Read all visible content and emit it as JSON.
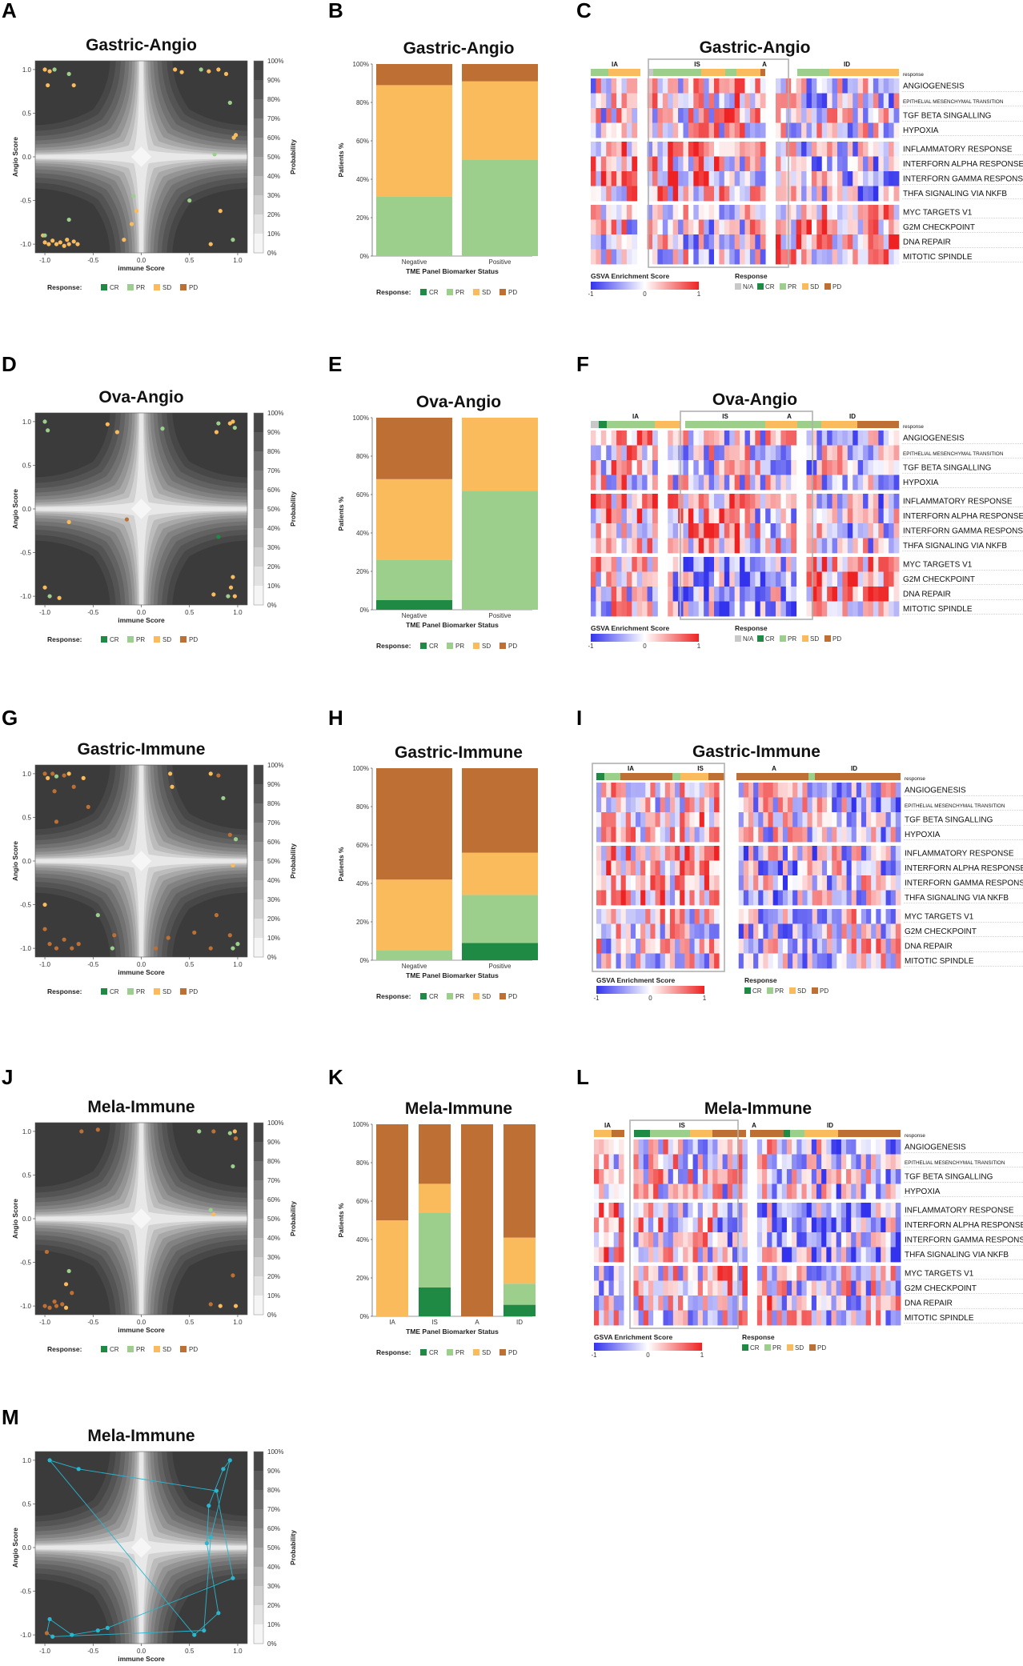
{
  "figure": {
    "panels": [
      {
        "id": "A",
        "kind": "contour",
        "title": "Gastric-Angio"
      },
      {
        "id": "B",
        "kind": "bar",
        "title": "Gastric-Angio"
      },
      {
        "id": "C",
        "kind": "heatmap",
        "title": "Gastric-Angio"
      },
      {
        "id": "D",
        "kind": "contour",
        "title": "Ova-Angio"
      },
      {
        "id": "E",
        "kind": "bar",
        "title": "Ova-Angio"
      },
      {
        "id": "F",
        "kind": "heatmap",
        "title": "Ova-Angio"
      },
      {
        "id": "G",
        "kind": "contour",
        "title": "Gastric-Immune"
      },
      {
        "id": "H",
        "kind": "bar",
        "title": "Gastric-Immune"
      },
      {
        "id": "I",
        "kind": "heatmap",
        "title": "Gastric-Immune"
      },
      {
        "id": "J",
        "kind": "contour",
        "title": "Mela-Immune"
      },
      {
        "id": "K",
        "kind": "bar",
        "title": "Mela-Immune"
      },
      {
        "id": "L",
        "kind": "heatmap",
        "title": "Mela-Immune"
      },
      {
        "id": "M",
        "kind": "contour",
        "title": "Mela-Immune"
      }
    ]
  },
  "contour_common": {
    "x_label": "immune Score",
    "y_label": "Angio Score",
    "x_ticks": [
      "-1.0",
      "-0.5",
      "0.0",
      "0.5",
      "1.0"
    ],
    "y_ticks": [
      "1.0",
      "0.5",
      "0.0",
      "-0.5",
      "-1.0"
    ],
    "colorbar_label": "Probability",
    "colorbar_ticks": [
      "100%",
      "90%",
      "80%",
      "70%",
      "60%",
      "50%",
      "40%",
      "30%",
      "20%",
      "10%",
      "0%"
    ],
    "response_label": "Response:",
    "responses": [
      "CR",
      "PR",
      "SD",
      "PD"
    ]
  },
  "bar_common": {
    "y_label": "Patients %",
    "x_label": "TME Panel Biomarker Status",
    "y_ticks": [
      "100%",
      "80%",
      "60%",
      "40%",
      "20%",
      "0%"
    ]
  },
  "heatmap_common": {
    "legend_title": "GSVA Enrichment Score",
    "scale_ticks": [
      "-1",
      "0",
      "1"
    ],
    "response_title": "Response",
    "response_keys_full": [
      "N/A",
      "CR",
      "PR",
      "SD",
      "PD"
    ],
    "response_keys_short": [
      "CR",
      "PR",
      "SD",
      "PD"
    ],
    "row_header": "response",
    "pathways": [
      "ANGIOGENESIS",
      "EPITHELIAL MESENCHYMAL TRANSITION",
      "TGF BETA SINGALLING",
      "HYPOXIA",
      "INFLAMMATORY RESPONSE",
      "INTERFORN ALPHA RESPONSE",
      "INTERFORN GAMMA RESPONSE",
      "THFA SIGNALING VIA NKFB",
      "MYC TARGETS V1",
      "G2M CHECKPOINT",
      "DNA REPAIR",
      "MITOTIC SPINDLE"
    ],
    "groups_C": [
      "IA",
      "IS",
      "A",
      "ID"
    ],
    "groups_F": [
      "IA",
      "IS",
      "A",
      "ID"
    ],
    "groups_I": [
      "IA",
      "IS",
      "A",
      "ID"
    ],
    "groups_L": [
      "IA",
      "IS",
      "A",
      "ID"
    ]
  },
  "colors": {
    "CR": "#1e8a44",
    "PR": "#9ccf8c",
    "SD": "#f9bb5c",
    "PD": "#be7034",
    "NA": "#c8c8c8",
    "low": "#3333ee",
    "mid": "#ffffff",
    "high": "#ee2222",
    "traj": "#29b6cf"
  },
  "chart_data": [
    {
      "panel": "B",
      "type": "bar",
      "title": "Gastric-Angio",
      "xlabel": "TME Panel Biomarker Status",
      "ylabel": "Patients %",
      "ylim": [
        0,
        100
      ],
      "categories": [
        "Negative",
        "Positive"
      ],
      "series": [
        {
          "name": "CR",
          "values": [
            0,
            0
          ]
        },
        {
          "name": "PR",
          "values": [
            31,
            50
          ]
        },
        {
          "name": "SD",
          "values": [
            58,
            41
          ]
        },
        {
          "name": "PD",
          "values": [
            11,
            9
          ]
        }
      ]
    },
    {
      "panel": "E",
      "type": "bar",
      "title": "Ova-Angio",
      "xlabel": "TME Panel Biomarker Status",
      "ylabel": "Patients %",
      "ylim": [
        0,
        100
      ],
      "categories": [
        "Negative",
        "Positive"
      ],
      "series": [
        {
          "name": "CR",
          "values": [
            5,
            0
          ]
        },
        {
          "name": "PR",
          "values": [
            21,
            62
          ]
        },
        {
          "name": "SD",
          "values": [
            42,
            38
          ]
        },
        {
          "name": "PD",
          "values": [
            32,
            0
          ]
        }
      ]
    },
    {
      "panel": "H",
      "type": "bar",
      "title": "Gastric-Immune",
      "xlabel": "TME Panel Biomarker Status",
      "ylabel": "Patients %",
      "ylim": [
        0,
        100
      ],
      "categories": [
        "Negative",
        "Positive"
      ],
      "series": [
        {
          "name": "CR",
          "values": [
            0,
            9
          ]
        },
        {
          "name": "PR",
          "values": [
            5,
            25
          ]
        },
        {
          "name": "SD",
          "values": [
            37,
            22
          ]
        },
        {
          "name": "PD",
          "values": [
            58,
            44
          ]
        }
      ]
    },
    {
      "panel": "K",
      "type": "bar",
      "title": "Mela-Immune",
      "xlabel": "TME Panel Biomarker Status",
      "ylabel": "Patients %",
      "ylim": [
        0,
        100
      ],
      "categories": [
        "IA",
        "IS",
        "A",
        "ID"
      ],
      "series": [
        {
          "name": "CR",
          "values": [
            0,
            15,
            0,
            6
          ]
        },
        {
          "name": "PR",
          "values": [
            0,
            39,
            0,
            11
          ]
        },
        {
          "name": "SD",
          "values": [
            50,
            15,
            0,
            24
          ]
        },
        {
          "name": "PD",
          "values": [
            50,
            31,
            100,
            59
          ]
        }
      ]
    },
    {
      "panel": "A",
      "type": "scatter",
      "title": "Gastric-Angio",
      "xlabel": "immune Score",
      "ylabel": "Angio Score",
      "xlim": [
        -1.1,
        1.1
      ],
      "ylim": [
        -1.1,
        1.1
      ],
      "points": [
        [
          -1.0,
          1.0,
          "SD"
        ],
        [
          -0.95,
          0.98,
          "SD"
        ],
        [
          -0.9,
          1.0,
          "PR"
        ],
        [
          -0.75,
          0.95,
          "PR"
        ],
        [
          -0.7,
          0.82,
          "SD"
        ],
        [
          -0.97,
          0.82,
          "SD"
        ],
        [
          0.35,
          1.0,
          "SD"
        ],
        [
          0.42,
          0.97,
          "SD"
        ],
        [
          0.62,
          1.0,
          "PR"
        ],
        [
          0.7,
          0.98,
          "SD"
        ],
        [
          0.8,
          1.0,
          "SD"
        ],
        [
          0.88,
          0.95,
          "SD"
        ],
        [
          0.92,
          0.62,
          "PR"
        ],
        [
          0.98,
          0.25,
          "SD"
        ],
        [
          0.96,
          0.22,
          "SD"
        ],
        [
          0.76,
          0.03,
          "PR"
        ],
        [
          0.5,
          -0.5,
          "PR"
        ],
        [
          0.82,
          -0.62,
          "SD"
        ],
        [
          0.95,
          -0.95,
          "PR"
        ],
        [
          0.72,
          -1.0,
          "SD"
        ],
        [
          -0.08,
          -0.45,
          "PR"
        ],
        [
          -0.05,
          -0.62,
          "SD"
        ],
        [
          -0.1,
          -0.77,
          "SD"
        ],
        [
          -0.18,
          -0.95,
          "SD"
        ],
        [
          -1.02,
          -0.9,
          "SD"
        ],
        [
          -1.0,
          -0.98,
          "SD"
        ],
        [
          -0.96,
          -1.0,
          "SD"
        ],
        [
          -0.92,
          -0.96,
          "SD"
        ],
        [
          -0.88,
          -1.0,
          "SD"
        ],
        [
          -0.84,
          -0.98,
          "SD"
        ],
        [
          -0.8,
          -1.02,
          "SD"
        ],
        [
          -0.75,
          -1.0,
          "SD"
        ],
        [
          -0.7,
          -0.97,
          "SD"
        ],
        [
          -0.66,
          -1.0,
          "SD"
        ],
        [
          -1.0,
          -0.9,
          "PR"
        ],
        [
          -0.77,
          -0.95,
          "SD"
        ],
        [
          -0.75,
          -0.72,
          "PR"
        ]
      ]
    },
    {
      "panel": "D",
      "type": "scatter",
      "title": "Ova-Angio",
      "xlabel": "immune Score",
      "ylabel": "Angio Score",
      "xlim": [
        -1.1,
        1.1
      ],
      "ylim": [
        -1.1,
        1.1
      ],
      "points": [
        [
          -1.0,
          1.0,
          "PR"
        ],
        [
          -0.97,
          0.9,
          "PR"
        ],
        [
          -0.35,
          0.97,
          "SD"
        ],
        [
          -0.25,
          0.88,
          "SD"
        ],
        [
          0.22,
          0.92,
          "PR"
        ],
        [
          0.8,
          0.98,
          "PR"
        ],
        [
          0.95,
          1.0,
          "SD"
        ],
        [
          0.97,
          0.93,
          "PR"
        ],
        [
          0.92,
          0.98,
          "SD"
        ],
        [
          0.78,
          0.88,
          "SD"
        ],
        [
          -0.75,
          -0.15,
          "SD"
        ],
        [
          -0.15,
          -0.12,
          "PD"
        ],
        [
          0.8,
          -0.32,
          "CR"
        ],
        [
          0.95,
          -0.78,
          "SD"
        ],
        [
          0.93,
          -0.9,
          "SD"
        ],
        [
          0.9,
          -1.0,
          "PR"
        ],
        [
          0.97,
          -1.0,
          "SD"
        ],
        [
          0.75,
          -0.98,
          "SD"
        ],
        [
          -1.0,
          -0.9,
          "SD"
        ],
        [
          -0.95,
          -1.0,
          "PR"
        ],
        [
          -0.85,
          -1.02,
          "SD"
        ]
      ]
    },
    {
      "panel": "G",
      "type": "scatter",
      "title": "Gastric-Immune",
      "xlabel": "immune Score",
      "ylabel": "Angio Score",
      "xlim": [
        -1.1,
        1.1
      ],
      "ylim": [
        -1.1,
        1.1
      ],
      "points": [
        [
          -1.0,
          1.0,
          "PD"
        ],
        [
          -0.97,
          0.95,
          "SD"
        ],
        [
          -0.92,
          1.0,
          "PD"
        ],
        [
          -0.88,
          0.97,
          "PR"
        ],
        [
          -0.8,
          0.98,
          "PD"
        ],
        [
          -0.75,
          1.0,
          "SD"
        ],
        [
          -0.7,
          0.85,
          "PD"
        ],
        [
          -0.6,
          0.95,
          "SD"
        ],
        [
          -0.9,
          0.8,
          "PD"
        ],
        [
          -0.55,
          0.62,
          "PD"
        ],
        [
          -0.88,
          0.45,
          "PD"
        ],
        [
          0.3,
          1.0,
          "SD"
        ],
        [
          0.32,
          0.85,
          "SD"
        ],
        [
          0.72,
          1.0,
          "SD"
        ],
        [
          0.8,
          0.98,
          "PD"
        ],
        [
          0.85,
          0.72,
          "PR"
        ],
        [
          0.98,
          0.25,
          "PR"
        ],
        [
          0.95,
          -0.05,
          "SD"
        ],
        [
          0.92,
          0.3,
          "PD"
        ],
        [
          0.55,
          -0.82,
          "PD"
        ],
        [
          0.78,
          -0.62,
          "PD"
        ],
        [
          0.92,
          -0.85,
          "PD"
        ],
        [
          0.95,
          -1.0,
          "PR"
        ],
        [
          1.0,
          -0.95,
          "PR"
        ],
        [
          0.72,
          -1.0,
          "PD"
        ],
        [
          0.28,
          -0.88,
          "PD"
        ],
        [
          0.15,
          -1.0,
          "PD"
        ],
        [
          -0.28,
          -0.85,
          "PD"
        ],
        [
          -0.45,
          -0.62,
          "PR"
        ],
        [
          -0.3,
          -1.0,
          "PR"
        ],
        [
          -1.0,
          -0.78,
          "PD"
        ],
        [
          -0.95,
          -0.95,
          "PD"
        ],
        [
          -0.88,
          -1.0,
          "PD"
        ],
        [
          -0.8,
          -0.9,
          "PD"
        ],
        [
          -0.72,
          -1.0,
          "PD"
        ],
        [
          -0.65,
          -0.95,
          "PD"
        ],
        [
          -1.0,
          -0.5,
          "SD"
        ]
      ]
    },
    {
      "panel": "J",
      "type": "scatter",
      "title": "Mela-Immune",
      "xlabel": "immune Score",
      "ylabel": "Angio Score",
      "xlim": [
        -1.1,
        1.1
      ],
      "ylim": [
        -1.1,
        1.1
      ],
      "points": [
        [
          -0.62,
          1.0,
          "PD"
        ],
        [
          -0.45,
          1.02,
          "PD"
        ],
        [
          0.6,
          1.0,
          "PR"
        ],
        [
          0.75,
          1.0,
          "PD"
        ],
        [
          0.92,
          0.98,
          "PR"
        ],
        [
          0.97,
          1.0,
          "SD"
        ],
        [
          0.98,
          0.92,
          "PD"
        ],
        [
          0.95,
          0.6,
          "PR"
        ],
        [
          0.72,
          0.1,
          "PR"
        ],
        [
          0.75,
          0.05,
          "SD"
        ],
        [
          0.95,
          -0.65,
          "PD"
        ],
        [
          0.72,
          -0.98,
          "PD"
        ],
        [
          0.82,
          -1.0,
          "SD"
        ],
        [
          0.98,
          -1.0,
          "SD"
        ],
        [
          -0.75,
          -0.6,
          "PR"
        ],
        [
          -0.78,
          -0.75,
          "SD"
        ],
        [
          -0.72,
          -0.85,
          "PD"
        ],
        [
          -0.9,
          -0.95,
          "PD"
        ],
        [
          -1.0,
          -1.0,
          "PD"
        ],
        [
          -0.95,
          -1.02,
          "PD"
        ],
        [
          -0.88,
          -1.0,
          "PD"
        ],
        [
          -0.82,
          -0.98,
          "PD"
        ],
        [
          -0.78,
          -1.02,
          "SD"
        ],
        [
          -0.98,
          -0.38,
          "PD"
        ]
      ]
    },
    {
      "panel": "M",
      "type": "scatter",
      "title": "Mela-Immune",
      "xlabel": "immune Score",
      "ylabel": "Angio Score",
      "xlim": [
        -1.1,
        1.1
      ],
      "ylim": [
        -1.1,
        1.1
      ],
      "points": [
        [
          -0.95,
          1.0,
          "PR"
        ],
        [
          0.92,
          1.0,
          "PR"
        ],
        [
          -0.65,
          0.9,
          "SD"
        ],
        [
          0.85,
          0.9,
          "SD"
        ],
        [
          0.78,
          0.65,
          "SD"
        ],
        [
          0.7,
          0.48,
          "SD"
        ],
        [
          0.72,
          0.12,
          "SD"
        ],
        [
          0.68,
          0.05,
          "SD"
        ],
        [
          0.95,
          -0.35,
          "SD"
        ],
        [
          0.8,
          -0.75,
          "SD"
        ],
        [
          0.65,
          -0.95,
          "SD"
        ],
        [
          0.55,
          -1.0,
          "SD"
        ],
        [
          -0.35,
          -0.92,
          "SD"
        ],
        [
          -0.45,
          -0.95,
          "SD"
        ],
        [
          -0.72,
          -1.0,
          "SD"
        ],
        [
          -0.95,
          -0.82,
          "SD"
        ],
        [
          -0.98,
          -0.98,
          "PD"
        ],
        [
          -0.92,
          -1.02,
          "SD"
        ]
      ]
    }
  ]
}
